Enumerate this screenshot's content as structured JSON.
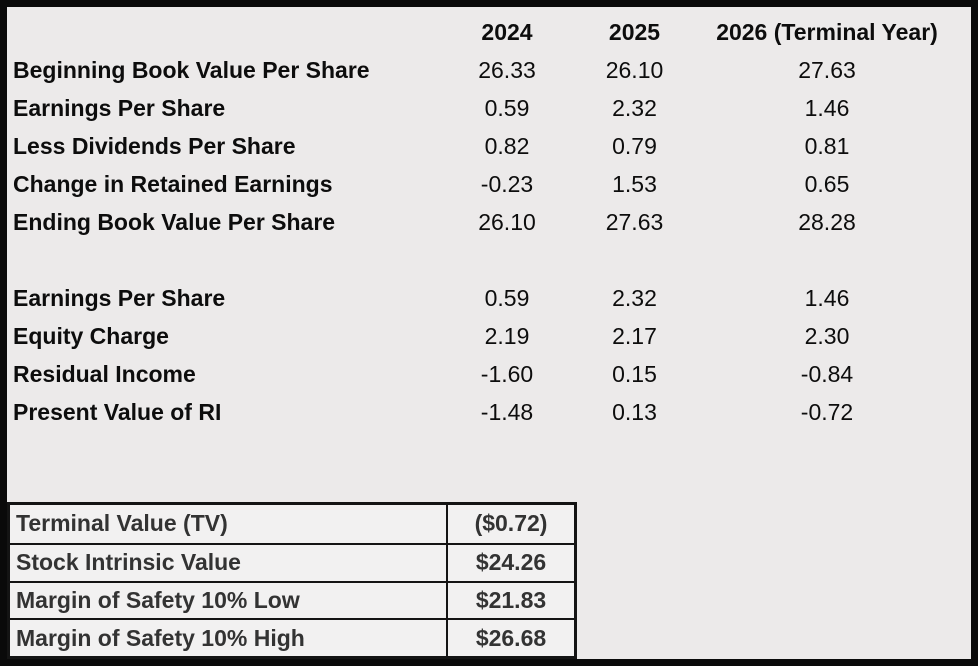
{
  "chart_data": [
    {
      "type": "table",
      "columns": [
        "",
        "2024",
        "2025",
        "2026 (Terminal Year)"
      ],
      "sections": [
        {
          "rows": [
            {
              "label": "Beginning Book Value Per Share",
              "values": [
                "26.33",
                "26.10",
                "27.63"
              ]
            },
            {
              "label": "Earnings Per Share",
              "values": [
                "0.59",
                "2.32",
                "1.46"
              ]
            },
            {
              "label": "Less Dividends Per Share",
              "values": [
                "0.82",
                "0.79",
                "0.81"
              ]
            },
            {
              "label": "Change in Retained Earnings",
              "values": [
                "-0.23",
                "1.53",
                "0.65"
              ]
            },
            {
              "label": "Ending Book Value Per Share",
              "values": [
                "26.10",
                "27.63",
                "28.28"
              ]
            }
          ]
        },
        {
          "rows": [
            {
              "label": "Earnings Per Share",
              "values": [
                "0.59",
                "2.32",
                "1.46"
              ]
            },
            {
              "label": "Equity Charge",
              "values": [
                "2.19",
                "2.17",
                "2.30"
              ]
            },
            {
              "label": "Residual Income",
              "values": [
                "-1.60",
                "0.15",
                "-0.84"
              ]
            },
            {
              "label": "Present Value of RI",
              "values": [
                "-1.48",
                "0.13",
                "-0.72"
              ]
            }
          ]
        }
      ]
    },
    {
      "type": "table",
      "rows": [
        {
          "label": "Terminal Value (TV)",
          "value": "($0.72)"
        },
        {
          "label": "Stock Intrinsic Value",
          "value": "$24.26"
        },
        {
          "label": "Margin of Safety 10% Low",
          "value": "$21.83"
        },
        {
          "label": "Margin of Safety 10% High",
          "value": "$26.68"
        }
      ]
    }
  ],
  "colors": {
    "sheet_background": "#eceaea",
    "outer_border": "#0a0a0a",
    "summary_cell_background": "#f2f1f1",
    "summary_border": "#141414",
    "main_text": "#0d0d0d",
    "summary_text": "#333333"
  }
}
